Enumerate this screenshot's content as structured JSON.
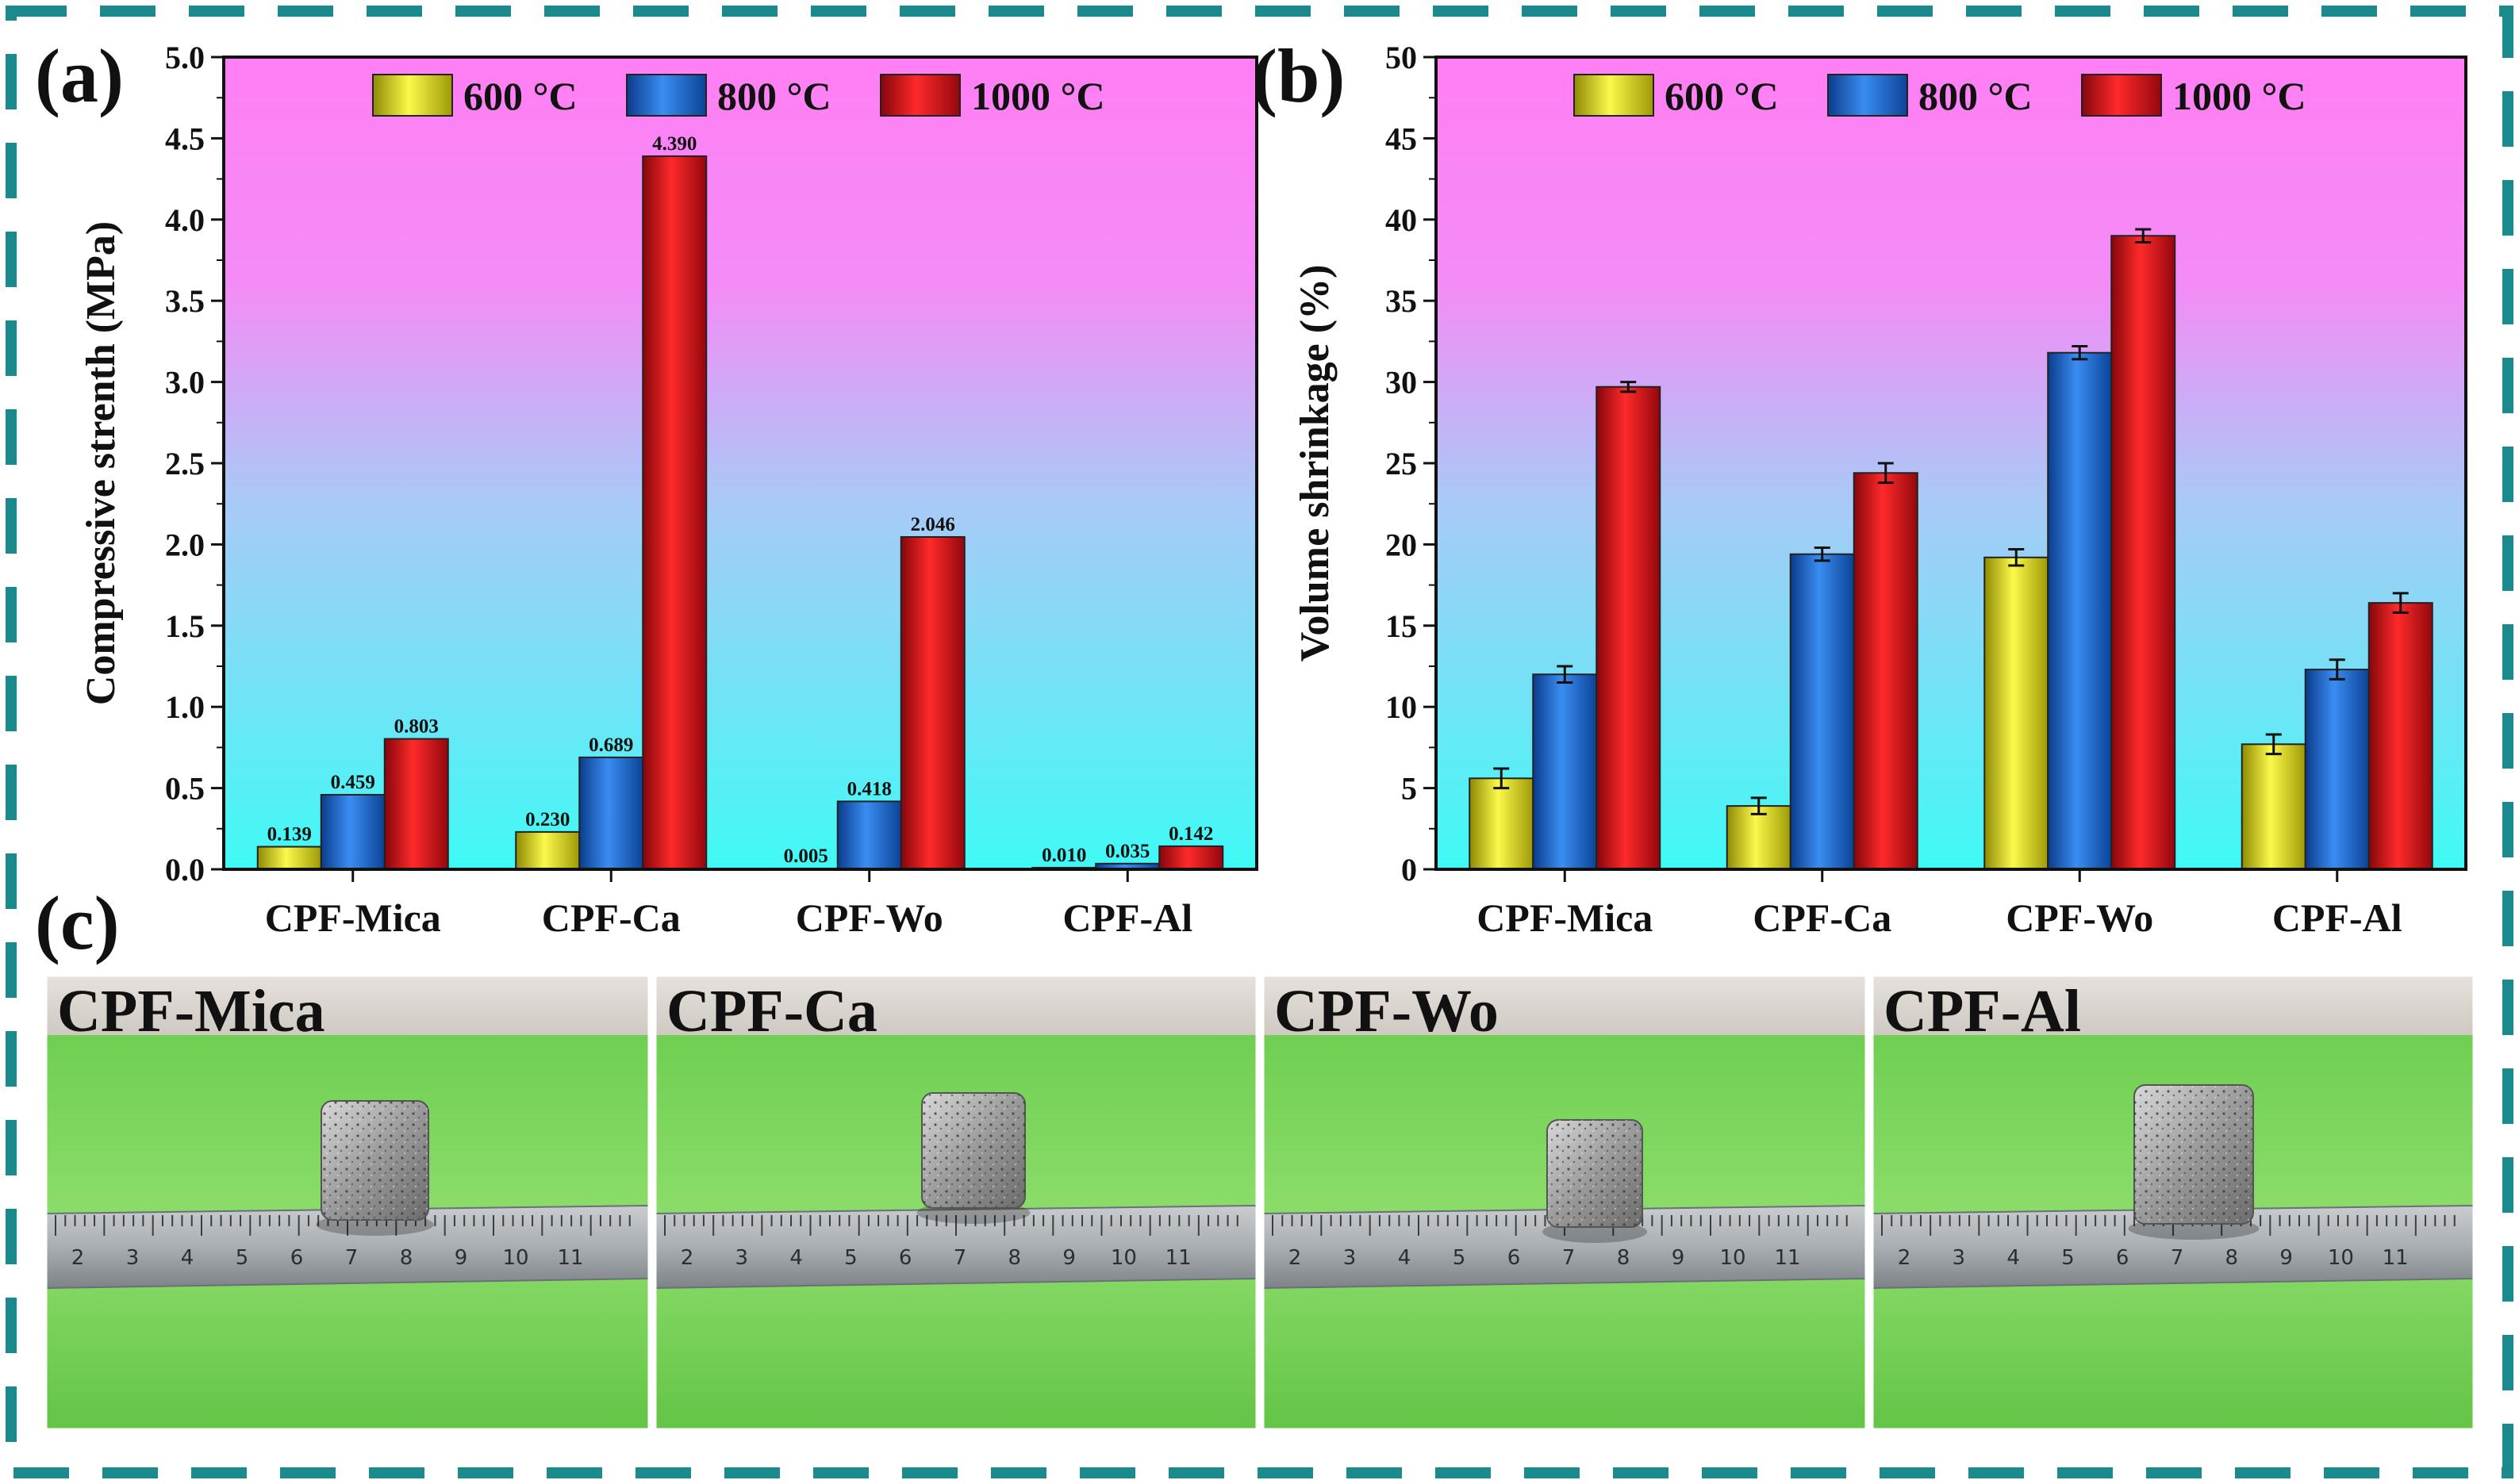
{
  "colors": {
    "600": "#f2ee1c",
    "800": "#1f6fe0",
    "1000": "#e8101a",
    "frame": "#1b8a8c",
    "bg_top": "#ff80f4",
    "bg_bottom": "#40fbf7"
  },
  "chart_data": [
    {
      "panel": "(a)",
      "type": "bar",
      "title": "",
      "xlabel": "",
      "ylabel": "Compressive strenth (MPa)",
      "ylim": [
        0,
        5.0
      ],
      "yticks": [
        "0.0",
        "0.5",
        "1.0",
        "1.5",
        "2.0",
        "2.5",
        "3.0",
        "3.5",
        "4.0",
        "4.5",
        "5.0"
      ],
      "ytick_values": [
        0,
        0.5,
        1.0,
        1.5,
        2.0,
        2.5,
        3.0,
        3.5,
        4.0,
        4.5,
        5.0
      ],
      "categories": [
        "CPF-Mica",
        "CPF-Ca",
        "CPF-Wo",
        "CPF-Al"
      ],
      "legend_position": "top",
      "series": [
        {
          "name": "600 °C",
          "color_key": "600",
          "values": [
            0.139,
            0.23,
            0.005,
            0.01
          ],
          "labels": [
            "0.139",
            "0.230",
            "0.005",
            "0.010"
          ]
        },
        {
          "name": "800 °C",
          "color_key": "800",
          "values": [
            0.459,
            0.689,
            0.418,
            0.035
          ],
          "labels": [
            "0.459",
            "0.689",
            "0.418",
            "0.035"
          ]
        },
        {
          "name": "1000 °C",
          "color_key": "1000",
          "values": [
            0.803,
            4.39,
            2.046,
            0.142
          ],
          "labels": [
            "0.803",
            "4.390",
            "2.046",
            "0.142"
          ]
        }
      ]
    },
    {
      "panel": "(b)",
      "type": "bar",
      "title": "",
      "xlabel": "",
      "ylabel": "Volume shrinkage (%)",
      "ylim": [
        0,
        50
      ],
      "yticks": [
        "0",
        "5",
        "10",
        "15",
        "20",
        "25",
        "30",
        "35",
        "40",
        "45",
        "50"
      ],
      "ytick_values": [
        0,
        5,
        10,
        15,
        20,
        25,
        30,
        35,
        40,
        45,
        50
      ],
      "categories": [
        "CPF-Mica",
        "CPF-Ca",
        "CPF-Wo",
        "CPF-Al"
      ],
      "legend_position": "top",
      "series": [
        {
          "name": "600 °C",
          "color_key": "600",
          "values": [
            5.6,
            3.9,
            19.2,
            7.7
          ],
          "errors": [
            0.6,
            0.5,
            0.5,
            0.6
          ]
        },
        {
          "name": "800 °C",
          "color_key": "800",
          "values": [
            12.0,
            19.4,
            31.8,
            12.3
          ],
          "errors": [
            0.5,
            0.4,
            0.4,
            0.6
          ]
        },
        {
          "name": "1000 °C",
          "color_key": "1000",
          "values": [
            29.7,
            24.4,
            39.0,
            16.4
          ],
          "errors": [
            0.3,
            0.6,
            0.4,
            0.6
          ]
        }
      ]
    }
  ],
  "photos": {
    "panel": "(c)",
    "items": [
      {
        "label": "CPF-Mica"
      },
      {
        "label": "CPF-Ca"
      },
      {
        "label": "CPF-Wo"
      },
      {
        "label": "CPF-Al"
      }
    ],
    "ruler_numbers": [
      "2",
      "3",
      "4",
      "5",
      "6",
      "7",
      "8",
      "9",
      "10",
      "11"
    ]
  }
}
